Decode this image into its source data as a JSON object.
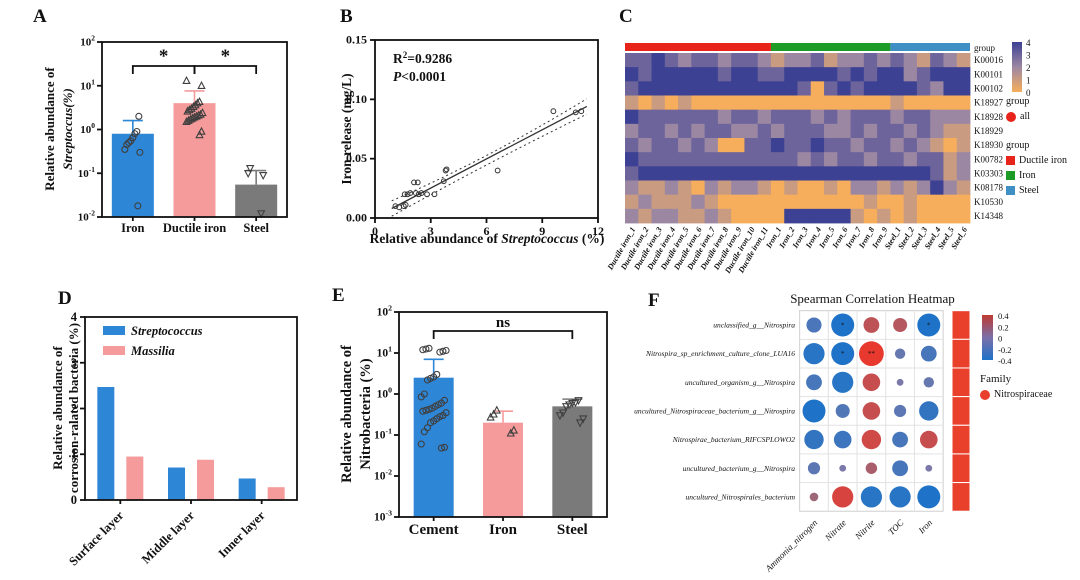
{
  "chart_data": [
    {
      "id": "A",
      "type": "bar",
      "scale": "log",
      "panel_label": "A",
      "ylabel_line1": "Relative abundance of",
      "ylabel_line2": "Streptoccus(%)",
      "ytick_exponents": [
        2,
        1,
        0,
        -1,
        -2
      ],
      "categories": [
        "Iron",
        "Ductile iron",
        "Steel"
      ],
      "values": [
        0.8,
        4.0,
        0.055
      ],
      "error_top": [
        1.6,
        7.6,
        0.115
      ],
      "bar_colors": [
        "#2E86D6",
        "#F59B9B",
        "#7A7A7A"
      ],
      "markers": [
        "circle",
        "triangle-up",
        "triangle-down"
      ],
      "points": [
        [
          0.018,
          0.3,
          0.35,
          0.45,
          0.5,
          0.55,
          0.65,
          0.8,
          0.9,
          2.0
        ],
        [
          0.75,
          0.9,
          1.5,
          1.6,
          1.7,
          1.8,
          1.9,
          2.0,
          2.1,
          2.2,
          2.4,
          2.6,
          2.8,
          3.0,
          3.3,
          3.6,
          4.0,
          4.3,
          10.0,
          13.0
        ],
        [
          0.012,
          0.09,
          0.1,
          0.13
        ]
      ],
      "significance": [
        {
          "a": 0,
          "b": 1,
          "label": "*"
        },
        {
          "a": 1,
          "b": 2,
          "label": "*"
        }
      ]
    },
    {
      "id": "B",
      "type": "scatter",
      "panel_label": "B",
      "ylabel": "Iron release (mg/L)",
      "xlabel": {
        "pre": "Relative abundance of ",
        "it": "Streptococcus",
        "post": " (%)"
      },
      "annotation": {
        "r2_base": "R",
        "r2_sup": "2",
        "r2_rest": "=0.9286",
        "p_italic": "P",
        "p_rest": "<0.0001"
      },
      "xlim": [
        0,
        12
      ],
      "ylim": [
        0,
        0.15
      ],
      "xticks": [
        "0",
        "3",
        "6",
        "9",
        "12"
      ],
      "yticks": [
        "0.00",
        "0.05",
        "0.10",
        "0.15"
      ],
      "points": [
        [
          1.1,
          0.01
        ],
        [
          1.3,
          0.009
        ],
        [
          1.55,
          0.01
        ],
        [
          1.65,
          0.011
        ],
        [
          1.6,
          0.02
        ],
        [
          1.75,
          0.02
        ],
        [
          1.9,
          0.021
        ],
        [
          2.1,
          0.03
        ],
        [
          2.3,
          0.03
        ],
        [
          2.2,
          0.021
        ],
        [
          2.35,
          0.02
        ],
        [
          2.5,
          0.021
        ],
        [
          2.8,
          0.02
        ],
        [
          3.2,
          0.02
        ],
        [
          3.7,
          0.031
        ],
        [
          3.8,
          0.04
        ],
        [
          3.85,
          0.041
        ],
        [
          6.6,
          0.04
        ],
        [
          9.6,
          0.09
        ],
        [
          10.8,
          0.089
        ],
        [
          11.1,
          0.09
        ]
      ],
      "fit": [
        [
          0.9,
          0.008
        ],
        [
          11.4,
          0.094
        ]
      ],
      "ci_upper": [
        [
          0.9,
          0.0145
        ],
        [
          6.1,
          0.0535
        ],
        [
          11.4,
          0.1005
        ]
      ],
      "ci_lower": [
        [
          0.9,
          0.0015
        ],
        [
          6.1,
          0.0455
        ],
        [
          11.4,
          0.0875
        ]
      ]
    },
    {
      "id": "C",
      "type": "heatmap",
      "panel_label": "C",
      "group_bar_label": "group",
      "group_spans": [
        {
          "label": "Ductile iron",
          "color": "#E8231A",
          "count": 11
        },
        {
          "label": "Iron",
          "color": "#1C9C27",
          "count": 9
        },
        {
          "label": "Steel",
          "color": "#3E8FC4",
          "count": 6
        }
      ],
      "rows": [
        "K00016",
        "K00101",
        "K00102",
        "K18927",
        "K18928",
        "K18929",
        "K18930",
        "K00782",
        "K03303",
        "K08178",
        "K10530",
        "K14348"
      ],
      "columns": [
        "Ductile iron_1",
        "Ductile iron_2",
        "Ductile iron_3",
        "Ductile iron_4",
        "Ductile iron_5",
        "Ductile iron_6",
        "Ductile iron_7",
        "Ductile iron_8",
        "Ductile iron_9",
        "Ductile iron_10",
        "Ductile iron_11",
        "Iron_1",
        "Iron_2",
        "Iron_3",
        "Iron_4",
        "Iron_5",
        "Iron_6",
        "Iron_7",
        "Iron_8",
        "Iron_9",
        "Steel_1",
        "Steel_2",
        "Steel_3",
        "Steel_4",
        "Steel_5",
        "Steel_6"
      ],
      "values": [
        [
          3,
          3,
          4,
          3,
          2,
          3,
          3,
          2,
          3,
          3,
          2,
          1,
          2,
          2,
          3,
          1,
          2,
          2,
          3,
          2,
          3,
          2,
          1,
          3,
          2,
          1
        ],
        [
          4,
          3,
          4,
          4,
          4,
          4,
          4,
          3,
          4,
          4,
          3,
          3,
          4,
          4,
          4,
          4,
          3,
          4,
          3,
          4,
          4,
          2,
          3,
          4,
          4,
          4
        ],
        [
          3,
          4,
          4,
          4,
          4,
          4,
          4,
          4,
          4,
          4,
          4,
          4,
          4,
          3,
          0,
          3,
          4,
          3,
          4,
          4,
          4,
          4,
          3,
          2,
          4,
          4
        ],
        [
          1,
          0,
          1,
          0,
          1,
          0,
          0,
          0,
          0,
          0,
          0,
          0,
          0,
          0,
          0,
          0,
          0,
          0,
          0,
          0,
          1,
          0,
          0,
          0,
          0,
          0
        ],
        [
          4,
          3,
          3,
          3,
          3,
          3,
          3,
          2,
          3,
          3,
          2,
          3,
          3,
          3,
          2,
          3,
          2,
          3,
          3,
          3,
          2,
          3,
          3,
          2,
          2,
          2
        ],
        [
          2,
          3,
          3,
          2,
          3,
          2,
          3,
          3,
          2,
          2,
          3,
          2,
          3,
          3,
          3,
          2,
          2,
          3,
          2,
          3,
          3,
          2,
          3,
          2,
          1,
          1
        ],
        [
          3,
          2,
          3,
          3,
          2,
          3,
          2,
          0,
          0,
          3,
          3,
          4,
          3,
          3,
          4,
          3,
          3,
          2,
          3,
          3,
          2,
          3,
          2,
          1,
          0,
          1
        ],
        [
          4,
          3,
          3,
          3,
          3,
          3,
          3,
          3,
          3,
          3,
          3,
          3,
          3,
          2,
          3,
          2,
          3,
          3,
          2,
          3,
          3,
          2,
          3,
          3,
          1,
          2
        ],
        [
          3,
          4,
          4,
          4,
          4,
          4,
          4,
          4,
          4,
          4,
          4,
          4,
          4,
          4,
          4,
          4,
          4,
          4,
          4,
          4,
          4,
          4,
          4,
          3,
          1,
          2
        ],
        [
          2,
          1,
          1,
          2,
          1,
          0,
          2,
          1,
          2,
          2,
          1,
          0,
          1,
          0,
          0,
          1,
          0,
          2,
          2,
          1,
          2,
          1,
          2,
          4,
          2,
          1
        ],
        [
          1,
          2,
          1,
          1,
          1,
          2,
          1,
          0,
          0,
          0,
          0,
          0,
          0,
          0,
          0,
          0,
          0,
          0,
          1,
          0,
          0,
          1,
          0,
          0,
          0,
          0
        ],
        [
          2,
          1,
          2,
          2,
          1,
          1,
          2,
          1,
          0,
          0,
          0,
          0,
          4,
          4,
          4,
          4,
          4,
          1,
          0,
          1,
          0,
          1,
          0,
          0,
          0,
          0
        ]
      ],
      "color_scale": {
        "low": "#F6AE5C",
        "mid": "#9C87A3",
        "high": "#3C4193"
      },
      "colorbar": {
        "ticks": [
          "4",
          "3",
          "2",
          "1",
          "0"
        ]
      },
      "legend1": {
        "title": "group",
        "items": [
          {
            "label": "all",
            "color": "#E8231A"
          }
        ]
      },
      "legend2": {
        "title": "group",
        "items": [
          {
            "label": "Ductile iron",
            "color": "#E8231A"
          },
          {
            "label": "Iron",
            "color": "#1C9C27"
          },
          {
            "label": "Steel",
            "color": "#3E8FC4"
          }
        ]
      }
    },
    {
      "id": "D",
      "type": "bar",
      "panel_label": "D",
      "ylabel_line1": "Relative abundance of",
      "ylabel_line2": "corrosion-ralated bacteria (%)",
      "ylim": [
        0,
        4
      ],
      "yticks": [
        "0",
        "1",
        "2",
        "3",
        "4"
      ],
      "categories": [
        "Surface layer",
        "Middle layer",
        "Inner layer"
      ],
      "series": [
        {
          "name": "Streptococcus",
          "color": "#2E86D6",
          "values": [
            2.47,
            0.71,
            0.47
          ]
        },
        {
          "name": "Massilia",
          "color": "#F59B9B",
          "values": [
            0.95,
            0.88,
            0.28
          ]
        }
      ]
    },
    {
      "id": "E",
      "type": "bar",
      "scale": "log",
      "panel_label": "E",
      "ylabel_line1": "Relative abundance of",
      "ylabel_line2": "Nitrobacteria (%)",
      "ytick_exponents": [
        2,
        1,
        0,
        -1,
        -2,
        -3
      ],
      "categories": [
        "Cement",
        "Iron",
        "Steel"
      ],
      "values": [
        2.5,
        0.2,
        0.5
      ],
      "error_top": [
        7.0,
        0.38,
        0.75
      ],
      "bar_colors": [
        "#2E86D6",
        "#F59B9B",
        "#7A7A7A"
      ],
      "markers": [
        "circle",
        "triangle-up",
        "triangle-down"
      ],
      "points": [
        [
          0.048,
          0.05,
          0.06,
          0.12,
          0.15,
          0.2,
          0.22,
          0.25,
          0.28,
          0.3,
          0.35,
          0.38,
          0.4,
          0.42,
          0.45,
          0.5,
          0.55,
          0.6,
          0.7,
          0.85,
          1.0,
          2.2,
          2.4,
          2.6,
          3.0,
          10.5,
          11.0,
          11.5,
          12.0,
          12.5,
          13.0
        ],
        [
          0.11,
          0.13,
          0.27,
          0.32,
          0.4
        ],
        [
          0.2,
          0.25,
          0.3,
          0.35,
          0.5,
          0.55,
          0.6,
          0.62,
          0.7
        ]
      ],
      "significance": [
        {
          "a": 0,
          "b": 2,
          "label": "ns"
        }
      ]
    },
    {
      "id": "F",
      "type": "bubble-heatmap",
      "panel_label": "F",
      "title": "Spearman Correlation Heatmap",
      "rows": [
        "unclassified_g__Nitrospira",
        "Nitrospira_sp_enrichment_culture_clone_LUA16",
        "uncultured_organism_g__Nitrospira",
        "uncultured_Nitrospiraceae_bacterium_g__Nitrospira",
        "Nitrospirae_bacterium_RIFCSPLOWO2",
        "uncultured_bacterium_g__Nitrospira",
        "uncultured_Nitrospirales_bacterium"
      ],
      "columns": [
        "Ammonia_nitrogen",
        "Nitrate",
        "Nitrite",
        "TOC",
        "Iron"
      ],
      "values": [
        [
          -0.28,
          -0.5,
          0.3,
          0.25,
          -0.5
        ],
        [
          -0.45,
          -0.5,
          0.55,
          -0.15,
          -0.3
        ],
        [
          -0.3,
          -0.45,
          0.35,
          -0.05,
          -0.15
        ],
        [
          -0.5,
          -0.25,
          0.35,
          -0.2,
          -0.4
        ],
        [
          -0.4,
          -0.35,
          0.4,
          -0.3,
          0.35
        ],
        [
          -0.2,
          -0.05,
          0.18,
          -0.3,
          -0.05
        ],
        [
          0.1,
          0.45,
          -0.45,
          -0.45,
          -0.5
        ]
      ],
      "sig": [
        [
          "",
          "*",
          "",
          "",
          "*"
        ],
        [
          "",
          "*",
          "**",
          "",
          ""
        ],
        [
          "",
          "",
          "",
          "",
          ""
        ],
        [
          "",
          "",
          "",
          "",
          ""
        ],
        [
          "",
          "",
          "",
          "",
          ""
        ],
        [
          "",
          "",
          "",
          "",
          ""
        ],
        [
          "",
          "",
          "",
          "",
          ""
        ]
      ],
      "corr_scale": {
        "pos": "#E8392E",
        "neg": "#1E73C8",
        "zero": "#857AA6"
      },
      "colorbar": {
        "ticks": [
          "0.4",
          "0.2",
          "0",
          "-0.2",
          "-0.4"
        ]
      },
      "family_strip": {
        "segments": 7,
        "color": "#E8402B"
      },
      "family_legend": {
        "title": "Family",
        "items": [
          {
            "label": "Nitrospiraceae",
            "color": "#E8402B"
          }
        ]
      }
    }
  ]
}
